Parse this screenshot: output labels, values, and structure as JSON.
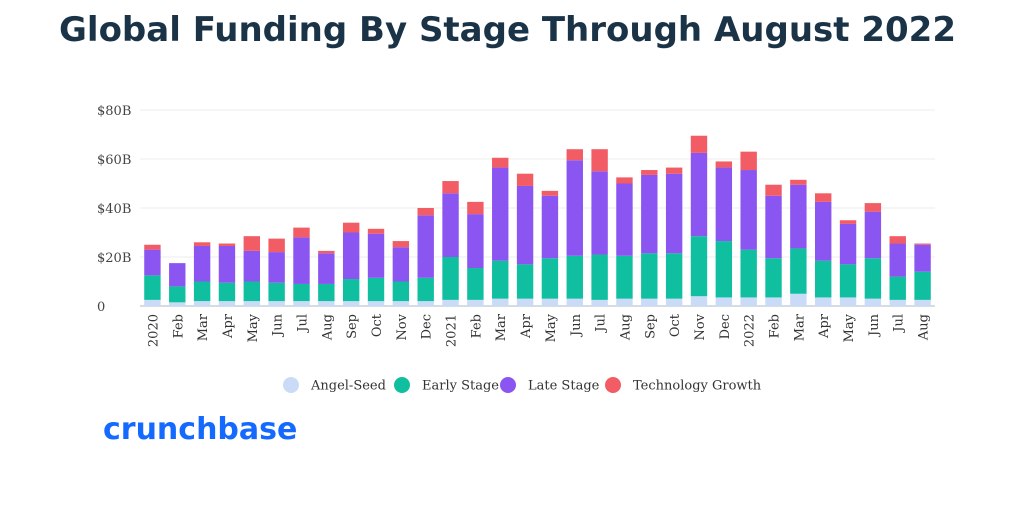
{
  "title": "Global Funding By Stage Through August 2022",
  "brand": "crunchbase",
  "chart_data": {
    "type": "bar",
    "stacked": true,
    "title": "Global Funding By Stage Through August 2022",
    "ylim": [
      0,
      80
    ],
    "y_ticks": [
      0,
      20,
      40,
      60,
      80
    ],
    "y_tick_labels": [
      "0",
      "$20B",
      "$40B",
      "$60B",
      "$80B"
    ],
    "grid": true,
    "legend_position": "bottom",
    "categories": [
      "2020",
      "Feb",
      "Mar",
      "Apr",
      "May",
      "Jun",
      "Jul",
      "Aug",
      "Sep",
      "Oct",
      "Nov",
      "Dec",
      "2021",
      "Feb",
      "Mar",
      "Apr",
      "May",
      "Jun",
      "Jul",
      "Aug",
      "Sep",
      "Oct",
      "Nov",
      "Dec",
      "2022",
      "Feb",
      "Mar",
      "Apr",
      "May",
      "Jun",
      "Jul",
      "Aug"
    ],
    "series": [
      {
        "name": "Angel-Seed",
        "color": "#c9dbf7",
        "values": [
          2.5,
          1.5,
          2,
          2,
          2,
          2,
          2,
          2,
          2,
          2,
          2,
          2,
          2.5,
          2.5,
          3,
          3,
          3,
          3,
          2.5,
          3,
          3,
          3,
          4,
          3.5,
          3.5,
          3.5,
          5,
          3.5,
          3.5,
          3,
          2.5,
          2.5
        ]
      },
      {
        "name": "Early Stage",
        "color": "#0fbf9f",
        "values": [
          10,
          6.5,
          8,
          7.5,
          8,
          7.5,
          7,
          7,
          9,
          9.5,
          8,
          9.5,
          17.5,
          13,
          15.5,
          14,
          16.5,
          17.5,
          18.5,
          17.5,
          18.5,
          18.5,
          24.5,
          23,
          19.5,
          16,
          18.5,
          15,
          13.5,
          16.5,
          9.5,
          11.5
        ]
      },
      {
        "name": "Late Stage",
        "color": "#8b55f2",
        "values": [
          10.5,
          9.5,
          14.5,
          15,
          12.5,
          12.5,
          19,
          12.5,
          19,
          18,
          14,
          25.5,
          26,
          22,
          38,
          32,
          25.5,
          39,
          34,
          29.5,
          32,
          32.5,
          34,
          30,
          32.5,
          25.5,
          26,
          24,
          16.5,
          19,
          13.5,
          11
        ]
      },
      {
        "name": "Technology Growth",
        "color": "#f25c64",
        "values": [
          2,
          0,
          1.5,
          1,
          6,
          5.5,
          4,
          1,
          4,
          2,
          2.5,
          3,
          5,
          5,
          4,
          5,
          2,
          4.5,
          9,
          2.5,
          2,
          2.5,
          7,
          2.5,
          7.5,
          4.5,
          2,
          3.5,
          1.5,
          3.5,
          3,
          0.5
        ]
      }
    ]
  }
}
